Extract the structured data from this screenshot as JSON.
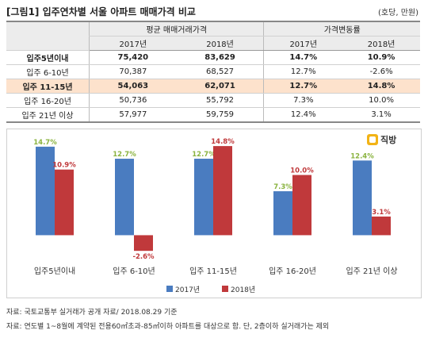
{
  "header": {
    "title": "[그림1] 입주연차별 서울 아파트 매매가격 비교",
    "unit": "(호당, 만원)"
  },
  "table": {
    "group_headers": [
      "평균 매매거래가격",
      "가격변동률"
    ],
    "sub_headers": [
      "2017년",
      "2018년",
      "2017년",
      "2018년"
    ],
    "rows": [
      {
        "label": "입주5년이내",
        "c1": "75,420",
        "c2": "83,629",
        "c3": "14.7%",
        "c4": "10.9%"
      },
      {
        "label": "입주 6-10년",
        "c1": "70,387",
        "c2": "68,527",
        "c3": "12.7%",
        "c4": "-2.6%"
      },
      {
        "label": "입주 11-15년",
        "c1": "54,063",
        "c2": "62,071",
        "c3": "12.7%",
        "c4": "14.8%"
      },
      {
        "label": "입주 16-20년",
        "c1": "50,736",
        "c2": "55,792",
        "c3": "7.3%",
        "c4": "10.0%"
      },
      {
        "label": "입주 21년 이상",
        "c1": "57,977",
        "c2": "59,759",
        "c3": "12.4%",
        "c4": "3.1%"
      }
    ]
  },
  "logo": {
    "text": "직방",
    "icon": "house-icon"
  },
  "chart_data": {
    "type": "bar",
    "categories": [
      "입주5년이내",
      "입주 6-10년",
      "입주 11-15년",
      "입주 16-20년",
      "입주 21년 이상"
    ],
    "series": [
      {
        "name": "2017년",
        "values": [
          14.7,
          12.7,
          12.7,
          7.3,
          12.4
        ],
        "labels": [
          "14.7%",
          "12.7%",
          "12.7%",
          "7.3%",
          "12.4%"
        ],
        "color": "#4a7cc0",
        "label_color": "#8ab33f"
      },
      {
        "name": "2018년",
        "values": [
          10.9,
          -2.6,
          14.8,
          10.0,
          3.1
        ],
        "labels": [
          "10.9%",
          "-2.6%",
          "14.8%",
          "10.0%",
          "3.1%"
        ],
        "color": "#c0393b",
        "label_color": "#c0393b"
      }
    ],
    "title": "",
    "xlabel": "",
    "ylabel": "",
    "ylim": [
      -3.5,
      16
    ],
    "grid": false,
    "legend": "bottom-center"
  },
  "footer": {
    "source": "자료: 국토교통부 실거래가 공개 자료/ 2018.08.29 기준",
    "note": "자료: 연도별 1~8월에 계약된 전용60㎡초과-85㎡이하 아파트를 대상으로 함. 단, 2층이하 실거래가는 제외"
  }
}
